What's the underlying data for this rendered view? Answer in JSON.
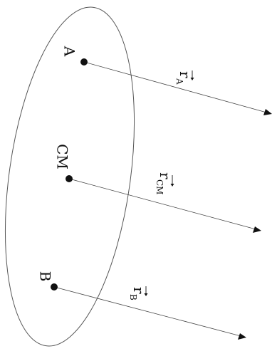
{
  "diagram": {
    "points": [
      {
        "id": "A",
        "label": "A"
      },
      {
        "id": "CM",
        "label": "CM"
      },
      {
        "id": "B",
        "label": "B"
      }
    ],
    "vectors": [
      {
        "id": "rA",
        "base": "r",
        "sub": "A"
      },
      {
        "id": "rCM",
        "base": "r",
        "sub": "CM"
      },
      {
        "id": "rB",
        "base": "r",
        "sub": "B"
      }
    ]
  }
}
